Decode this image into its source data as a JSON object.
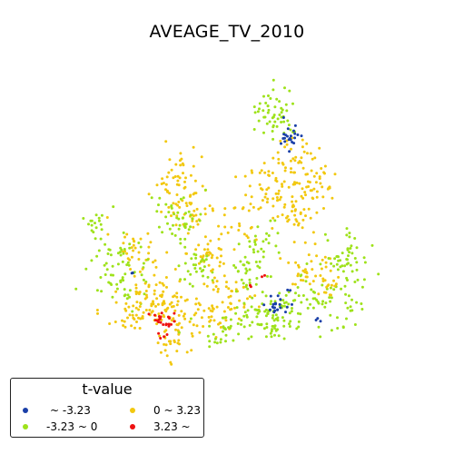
{
  "map": {
    "title": "AVEAGE_TV_2010"
  },
  "legend": {
    "title": "t-value",
    "items": [
      {
        "label": " ~ -3.23",
        "color": "#1a3fa8"
      },
      {
        "label": "-3.23 ~ 0",
        "color": "#9ee21a"
      },
      {
        "label": "0 ~ 3.23",
        "color": "#f2c80f"
      },
      {
        "label": "3.23 ~",
        "color": "#ee1111"
      }
    ]
  }
}
